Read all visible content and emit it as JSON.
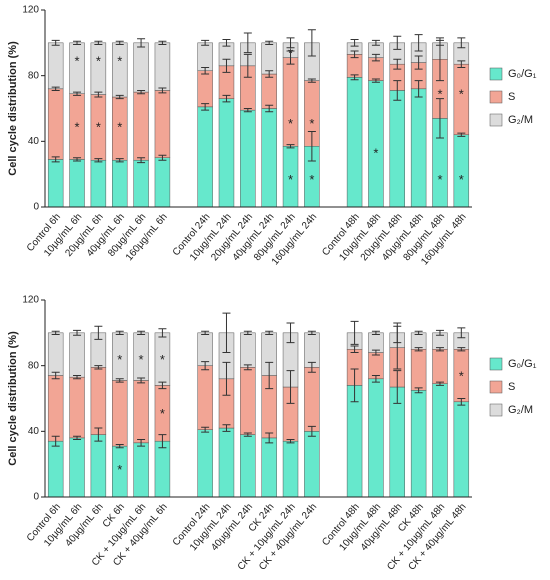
{
  "chart_data": [
    {
      "type": "bar",
      "stacked": true,
      "ylabel": "Cell cycle distribution (%)",
      "categories": [
        "Control 6h",
        "10μg/mL 6h",
        "20μg/mL 6h",
        "40μg/mL 6h",
        "80μg/mL 6h",
        "160μg/mL 6h",
        null,
        "Control 24h",
        "10μg/mL 24h",
        "20μg/mL 24h",
        "40μg/mL 24h",
        "80μg/mL 24h",
        "160μg/mL 24h",
        null,
        "Control 48h",
        "10μg/mL 48h",
        "20μg/mL 48h",
        "40μg/mL 48h",
        "80μg/mL 48h",
        "160μg/mL 48h"
      ],
      "series": [
        {
          "name": "G₀/G₁",
          "color": "#66e8cc",
          "values": [
            29,
            29,
            28.5,
            28.5,
            28.5,
            30,
            null,
            61,
            66,
            59,
            60,
            37,
            37,
            null,
            79,
            77,
            71,
            72,
            54,
            44
          ],
          "errors": [
            1.5,
            1,
            1,
            1,
            1.5,
            1.5,
            null,
            2,
            2,
            1,
            2,
            1,
            9,
            null,
            1.5,
            1,
            6,
            5,
            12,
            1
          ]
        },
        {
          "name": "S",
          "color": "#f2a595",
          "values": [
            43,
            40,
            40,
            38.5,
            41.5,
            41,
            null,
            22,
            20,
            27,
            21,
            54,
            40,
            null,
            14,
            14,
            16,
            16,
            36,
            43
          ],
          "errors": [
            1,
            1,
            1.5,
            1,
            1,
            1.5,
            null,
            2,
            4,
            7,
            2,
            4,
            1,
            null,
            2,
            2,
            3,
            4,
            13,
            2
          ]
        },
        {
          "name": "G₂/M",
          "color": "#dcdcdc",
          "values": [
            28,
            31,
            31.5,
            33,
            30,
            29,
            null,
            17,
            14,
            14,
            19,
            9,
            23,
            null,
            7,
            9,
            13,
            12,
            10,
            13
          ],
          "errors": [
            1.5,
            1,
            1,
            1,
            2.5,
            1,
            null,
            1.5,
            2,
            6,
            1,
            3,
            8,
            null,
            2,
            1.5,
            4,
            5,
            1.5,
            3
          ]
        }
      ],
      "annotations": [
        {
          "text": "*",
          "category": 1,
          "y": 90
        },
        {
          "text": "*",
          "category": 1,
          "y": 50
        },
        {
          "text": "*",
          "category": 2,
          "y": 90
        },
        {
          "text": "*",
          "category": 2,
          "y": 50
        },
        {
          "text": "*",
          "category": 3,
          "y": 90
        },
        {
          "text": "*",
          "category": 3,
          "y": 50
        },
        {
          "text": "*",
          "category": 11,
          "y": 95
        },
        {
          "text": "*",
          "category": 11,
          "y": 52
        },
        {
          "text": "*",
          "category": 11,
          "y": 18
        },
        {
          "text": "*",
          "category": 12,
          "y": 52
        },
        {
          "text": "*",
          "category": 12,
          "y": 18
        },
        {
          "text": "*",
          "category": 15,
          "y": 34
        },
        {
          "text": "*",
          "category": 18,
          "y": 70
        },
        {
          "text": "*",
          "category": 18,
          "y": 18
        },
        {
          "text": "*",
          "category": 19,
          "y": 70
        },
        {
          "text": "*",
          "category": 19,
          "y": 18
        }
      ],
      "ylim": [
        0,
        120
      ],
      "yticks": [
        0,
        40,
        80,
        120
      ]
    },
    {
      "type": "bar",
      "stacked": true,
      "ylabel": "Cell cycle distribution (%)",
      "categories": [
        "Control 6h",
        "10μg/mL 6h",
        "40μg/mL 6h",
        "CK 6h",
        "CK + 10μg/mL 6h",
        "CK + 40μg/mL 6h",
        null,
        "Control 24h",
        "10μg/mL 24h",
        "40μg/mL 24h",
        "CK 24h",
        "CK + 10μg/mL 24h",
        "CK + 40μg/mL 24h",
        null,
        "Control 48h",
        "10μg/mL 48h",
        "40μg/mL 48h",
        "CK 48h",
        "CK + 10μg/mL 48h",
        "CK + 40μg/mL 48h"
      ],
      "series": [
        {
          "name": "G₀/G₁",
          "color": "#66e8cc",
          "values": [
            34,
            36,
            38,
            31,
            33,
            34,
            null,
            41,
            42,
            38,
            36,
            34,
            40,
            null,
            68,
            72,
            67,
            65,
            69,
            58
          ],
          "errors": [
            3,
            1,
            4,
            1,
            2,
            4,
            null,
            1.5,
            2,
            1,
            3,
            1,
            3,
            null,
            10,
            2,
            10,
            1.5,
            1,
            2
          ]
        },
        {
          "name": "S",
          "color": "#f2a595",
          "values": [
            40,
            37,
            41,
            40,
            38,
            34,
            null,
            39,
            30,
            41,
            38,
            33,
            39,
            null,
            22,
            16,
            24,
            25,
            21,
            32
          ],
          "errors": [
            2,
            1,
            1,
            1,
            1.5,
            2,
            null,
            2.5,
            10,
            1.5,
            8,
            10,
            3,
            null,
            2,
            1.5,
            13,
            1,
            1,
            1
          ]
        },
        {
          "name": "G₂/M",
          "color": "#dcdcdc",
          "values": [
            26,
            27,
            21,
            29,
            29,
            32,
            null,
            20,
            28,
            21,
            26,
            33,
            21,
            null,
            10,
            12,
            9,
            10,
            10,
            10
          ],
          "errors": [
            1,
            1.5,
            4,
            1,
            1,
            2.5,
            null,
            1,
            12,
            1,
            1,
            6,
            1,
            null,
            7,
            1,
            6,
            1,
            1.5,
            3
          ]
        }
      ],
      "annotations": [
        {
          "text": "*",
          "category": 3,
          "y": 85
        },
        {
          "text": "*",
          "category": 3,
          "y": 18
        },
        {
          "text": "*",
          "category": 4,
          "y": 85
        },
        {
          "text": "*",
          "category": 5,
          "y": 85
        },
        {
          "text": "*",
          "category": 5,
          "y": 52
        },
        {
          "text": "*",
          "category": 19,
          "y": 75
        }
      ],
      "ylim": [
        0,
        120
      ],
      "yticks": [
        0,
        40,
        80,
        120
      ]
    }
  ]
}
